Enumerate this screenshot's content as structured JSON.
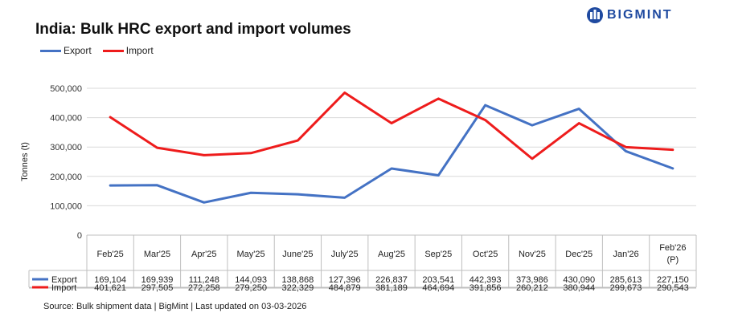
{
  "brand": {
    "name": "BIGMINT",
    "color": "#1f4aa0"
  },
  "title": "India: Bulk HRC export and import volumes",
  "source": "Source: Bulk shipment data | BigMint | Last updated on 03-03-2026",
  "chart_data": {
    "type": "line",
    "ylabel": "Tonnes (t)",
    "ylim": [
      0,
      500000
    ],
    "yticks": [
      "0",
      "100,000",
      "200,000",
      "300,000",
      "400,000",
      "500,000"
    ],
    "grid": true,
    "legend_position": "top-left",
    "categories": [
      "Feb'25",
      "Mar'25",
      "Apr'25",
      "May'25",
      "June'25",
      "July'25",
      "Aug'25",
      "Sep'25",
      "Oct'25",
      "Nov'25",
      "Dec'25",
      "Jan'26",
      "Feb'26 (P)"
    ],
    "series": [
      {
        "name": "Export",
        "color": "#4472c4",
        "values": [
          169104,
          169939,
          111248,
          144093,
          138868,
          127396,
          226837,
          203541,
          442393,
          373986,
          430090,
          285613,
          227150
        ],
        "labels": [
          "169,104",
          "169,939",
          "111,248",
          "144,093",
          "138,868",
          "127,396",
          "226,837",
          "203,541",
          "442,393",
          "373,986",
          "430,090",
          "285,613",
          "227,150"
        ]
      },
      {
        "name": "Import",
        "color": "#ee1c1c",
        "values": [
          401621,
          297505,
          272258,
          279250,
          322329,
          484879,
          381189,
          464694,
          391856,
          260212,
          380944,
          299673,
          290543
        ],
        "labels": [
          "401,621",
          "297,505",
          "272,258",
          "279,250",
          "322,329",
          "484,879",
          "381,189",
          "464,694",
          "391,856",
          "260,212",
          "380,944",
          "299,673",
          "290,543"
        ]
      }
    ]
  }
}
